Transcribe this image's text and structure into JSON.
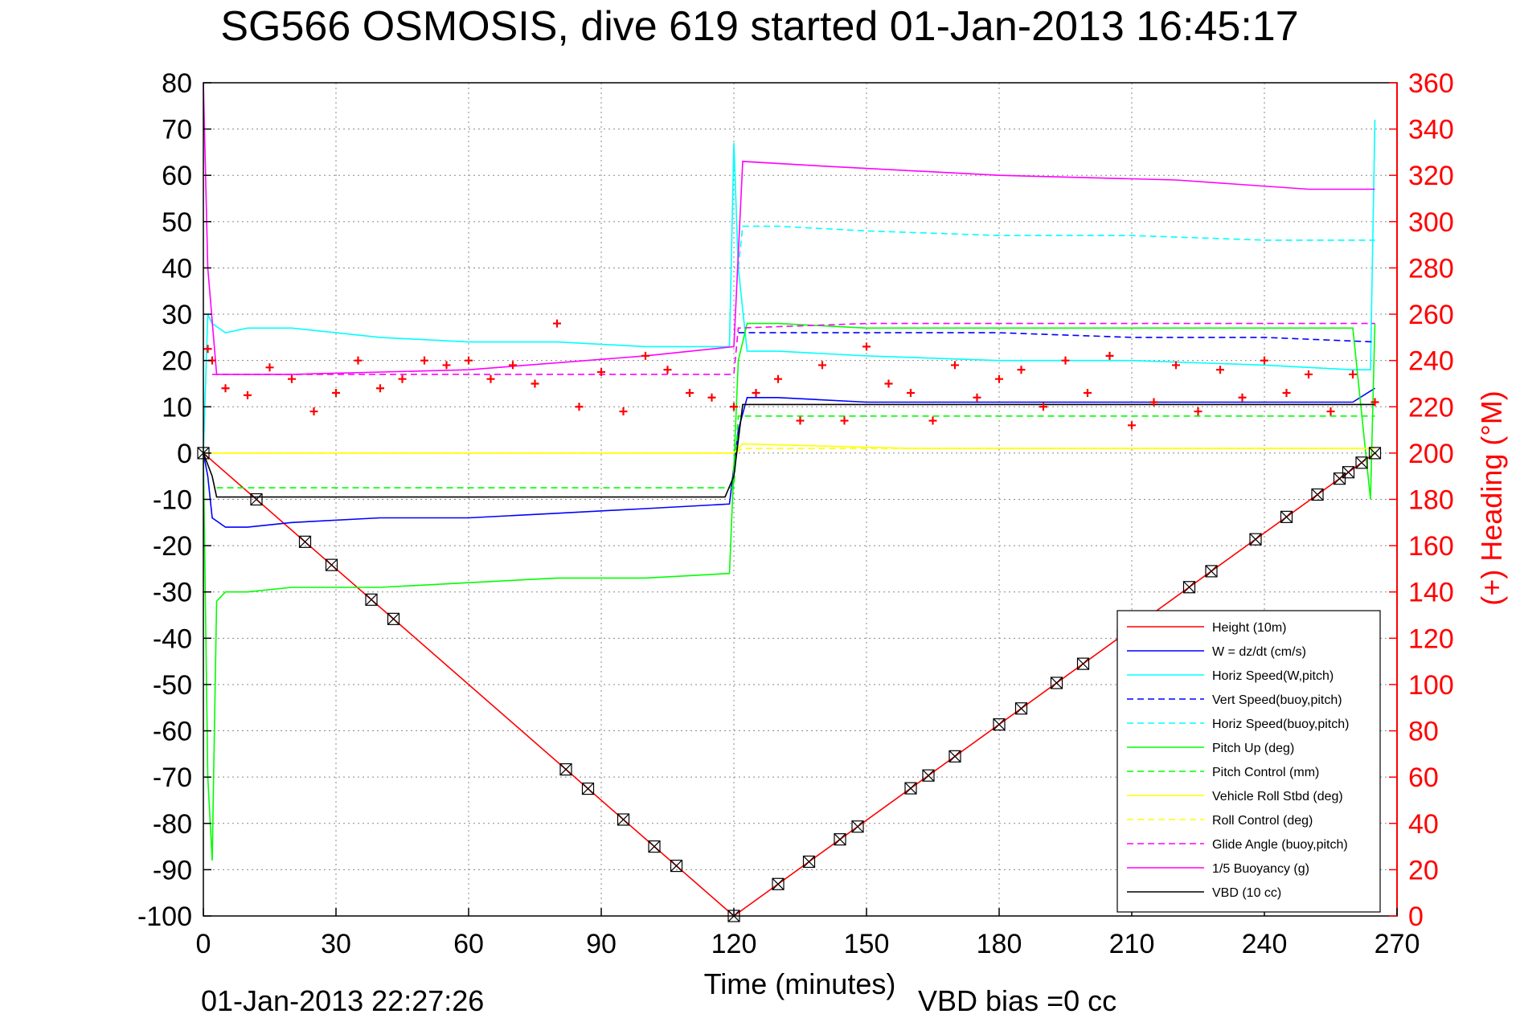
{
  "chart_data": {
    "type": "line",
    "title": "SG566 OSMOSIS, dive 619 started 01-Jan-2013 16:45:17",
    "xlabel": "Time (minutes)",
    "ylabel": "",
    "y2label": "(+) Heading (°M)",
    "xlim": [
      0,
      270
    ],
    "ylim": [
      -100,
      80
    ],
    "y2lim": [
      0,
      360
    ],
    "xticks": [
      "0",
      "30",
      "60",
      "90",
      "120",
      "150",
      "180",
      "210",
      "240",
      "270"
    ],
    "yticks": [
      "80",
      "70",
      "60",
      "50",
      "40",
      "30",
      "20",
      "10",
      "0",
      "-10",
      "-20",
      "-30",
      "-40",
      "-50",
      "-60",
      "-70",
      "-80",
      "-90",
      "-100"
    ],
    "y2ticks": [
      "360",
      "340",
      "320",
      "300",
      "280",
      "260",
      "240",
      "220",
      "200",
      "180",
      "160",
      "140",
      "120",
      "100",
      "80",
      "60",
      "40",
      "20",
      "0"
    ],
    "grid": true,
    "legend_position": "bottom-right",
    "footer_timestamp": "01-Jan-2013 22:27:26",
    "vbd_bias": "VBD bias =0 cc",
    "series": [
      {
        "name": "Height (10m)",
        "color": "#ff0000",
        "style": "solid",
        "x": [
          0,
          120,
          265
        ],
        "y": [
          0,
          -100,
          0
        ]
      },
      {
        "name": "W = dz/dt (cm/s)",
        "color": "#0000ff",
        "style": "solid",
        "x": [
          0,
          1,
          2,
          5,
          10,
          20,
          40,
          60,
          80,
          100,
          119,
          121,
          123,
          130,
          150,
          180,
          210,
          240,
          260,
          265
        ],
        "y": [
          0,
          -5,
          -14,
          -16,
          -16,
          -15,
          -14,
          -14,
          -13,
          -12,
          -11,
          5,
          12,
          12,
          11,
          11,
          11,
          11,
          11,
          14
        ]
      },
      {
        "name": "Horiz Speed(W,pitch)",
        "color": "#00ffff",
        "style": "solid",
        "x": [
          0,
          1,
          2,
          5,
          10,
          20,
          40,
          60,
          80,
          100,
          119,
          120,
          121,
          123,
          130,
          150,
          180,
          210,
          240,
          260,
          264,
          265
        ],
        "y": [
          0,
          30,
          28,
          26,
          27,
          27,
          25,
          24,
          24,
          23,
          23,
          67,
          40,
          22,
          22,
          21,
          20,
          20,
          19,
          18,
          18,
          72
        ]
      },
      {
        "name": "Vert Speed(buoy,pitch)",
        "color": "#0000ff",
        "style": "dashed",
        "x": [
          121,
          123,
          150,
          180,
          210,
          240,
          265
        ],
        "y": [
          26,
          26,
          26,
          26,
          25,
          25,
          24
        ]
      },
      {
        "name": "Horiz Speed(buoy,pitch)",
        "color": "#00ffff",
        "style": "dashed",
        "x": [
          121,
          122,
          130,
          150,
          180,
          210,
          240,
          265
        ],
        "y": [
          40,
          49,
          49,
          48,
          47,
          47,
          46,
          46
        ]
      },
      {
        "name": "Pitch Up (deg)",
        "color": "#00ff00",
        "style": "solid",
        "x": [
          0,
          1,
          2,
          3,
          5,
          10,
          20,
          40,
          60,
          80,
          100,
          119,
          121,
          123,
          130,
          150,
          180,
          210,
          240,
          260,
          264,
          265
        ],
        "y": [
          0,
          -70,
          -88,
          -32,
          -30,
          -30,
          -29,
          -29,
          -28,
          -27,
          -27,
          -26,
          20,
          28,
          28,
          27,
          27,
          27,
          27,
          27,
          -10,
          28
        ]
      },
      {
        "name": "Pitch Control (mm)",
        "color": "#00ff00",
        "style": "dashed",
        "x": [
          3,
          120,
          121,
          265
        ],
        "y": [
          -7.5,
          -7.5,
          8,
          8
        ]
      },
      {
        "name": "Vehicle Roll Stbd (deg)",
        "color": "#ffff00",
        "style": "solid",
        "x": [
          0,
          5,
          40,
          80,
          120,
          122,
          160,
          200,
          240,
          265
        ],
        "y": [
          0,
          0,
          0,
          0,
          0,
          2,
          1,
          1,
          1,
          1
        ]
      },
      {
        "name": "Roll Control (deg)",
        "color": "#ffff00",
        "style": "dashed",
        "x": [
          0,
          120,
          122,
          265
        ],
        "y": [
          0,
          0,
          1,
          1
        ]
      },
      {
        "name": "Glide Angle (buoy,pitch)",
        "color": "#ff00ff",
        "style": "dashed",
        "x": [
          2,
          120,
          121,
          150,
          200,
          265
        ],
        "y": [
          17,
          17,
          27,
          28,
          28,
          28
        ]
      },
      {
        "name": "1/5 Buoyancy (g)",
        "color": "#ff00ff",
        "style": "solid",
        "x": [
          0,
          1,
          3,
          20,
          60,
          100,
          120,
          122,
          140,
          180,
          220,
          250,
          265
        ],
        "y": [
          80,
          40,
          17,
          17,
          18,
          21,
          23,
          63,
          62,
          60,
          59,
          57,
          57
        ]
      },
      {
        "name": "VBD (10 cc)",
        "color": "#000000",
        "style": "solid",
        "x": [
          0,
          2,
          3,
          118,
          120,
          122,
          265
        ],
        "y": [
          0,
          -5,
          -9.5,
          -9.5,
          -5,
          10.5,
          10.5
        ]
      },
      {
        "name": "(+) Heading",
        "color": "#ff0000",
        "style": "markers",
        "axis": "right",
        "x": [
          1,
          2,
          5,
          10,
          15,
          20,
          25,
          30,
          35,
          40,
          45,
          50,
          55,
          60,
          65,
          70,
          75,
          80,
          85,
          90,
          95,
          100,
          105,
          110,
          115,
          120,
          125,
          130,
          135,
          140,
          145,
          150,
          155,
          160,
          165,
          170,
          175,
          180,
          185,
          190,
          195,
          200,
          205,
          210,
          215,
          220,
          225,
          230,
          235,
          240,
          245,
          250,
          255,
          260,
          265
        ],
        "y": [
          245,
          240,
          228,
          225,
          237,
          232,
          218,
          226,
          240,
          228,
          232,
          240,
          238,
          240,
          232,
          238,
          230,
          256,
          220,
          235,
          218,
          242,
          236,
          226,
          224,
          220,
          226,
          232,
          214,
          238,
          214,
          246,
          230,
          226,
          214,
          238,
          224,
          232,
          236,
          220,
          240,
          226,
          242,
          212,
          222,
          238,
          218,
          236,
          224,
          240,
          226,
          234,
          218,
          234,
          222
        ]
      }
    ]
  }
}
